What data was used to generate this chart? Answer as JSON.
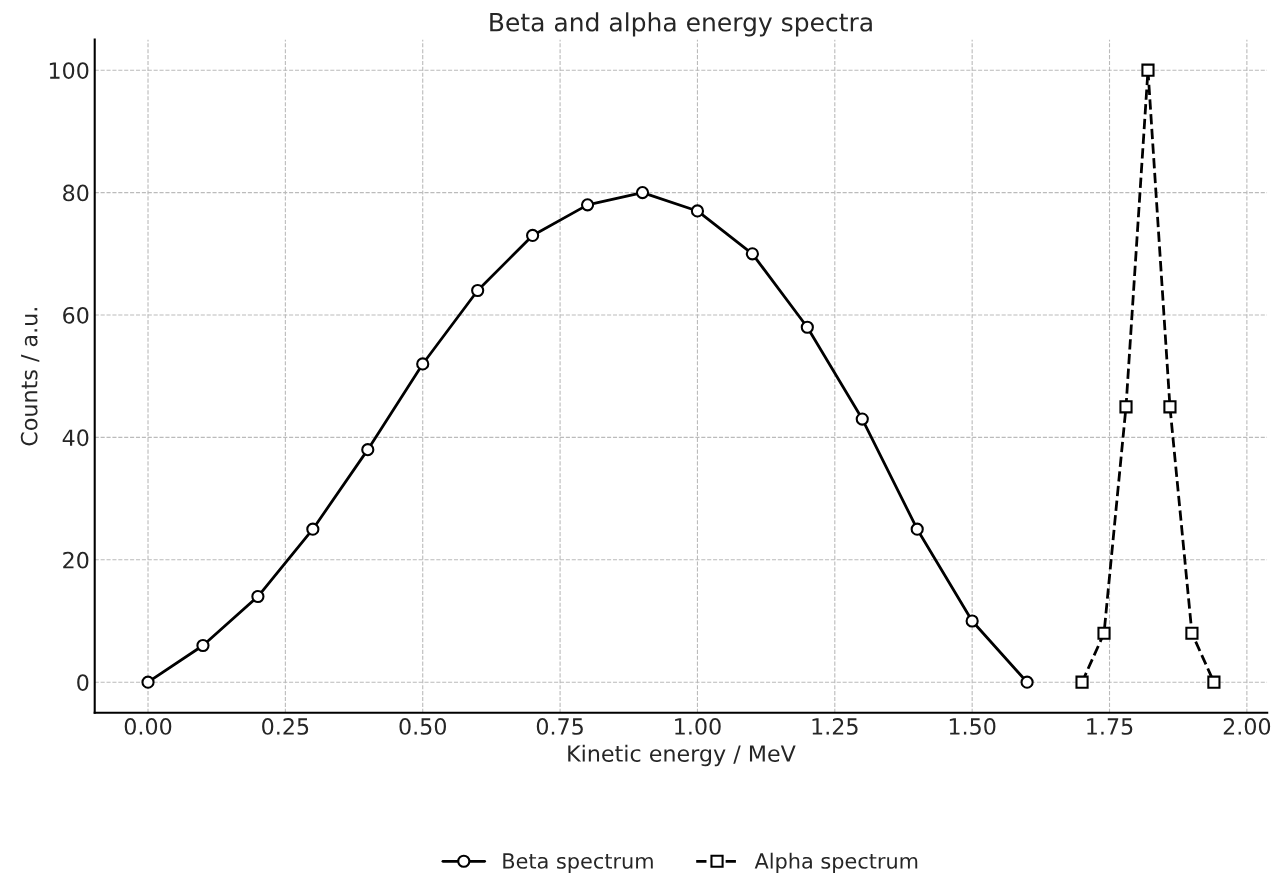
{
  "chart_data": {
    "type": "line",
    "title": "Beta and alpha energy spectra",
    "xlabel": "Kinetic energy / MeV",
    "ylabel": "Counts / a.u.",
    "xlim": [
      -0.097,
      2.037
    ],
    "ylim": [
      -5,
      105
    ],
    "xticks": [
      {
        "value": 0,
        "label": "0.00"
      },
      {
        "value": 0.25,
        "label": "0.25"
      },
      {
        "value": 0.5,
        "label": "0.50"
      },
      {
        "value": 0.75,
        "label": "0.75"
      },
      {
        "value": 1,
        "label": "1.00"
      },
      {
        "value": 1.25,
        "label": "1.25"
      },
      {
        "value": 1.5,
        "label": "1.50"
      },
      {
        "value": 1.75,
        "label": "1.75"
      },
      {
        "value": 2,
        "label": "2.00"
      }
    ],
    "yticks": [
      0,
      20,
      40,
      60,
      80,
      100
    ],
    "grid": true,
    "legend": "bottom",
    "series": [
      {
        "name": "Beta spectrum",
        "color": "#000000",
        "marker": "circle",
        "line_style": "solid",
        "x": [
          0,
          0.1,
          0.2,
          0.3,
          0.4,
          0.5,
          0.6,
          0.7,
          0.8,
          0.9,
          1.0,
          1.1,
          1.2,
          1.3,
          1.4,
          1.5,
          1.6
        ],
        "values": [
          0,
          6,
          14,
          25,
          38,
          52,
          64,
          73,
          78,
          80,
          77,
          70,
          58,
          43,
          25,
          10,
          0
        ]
      },
      {
        "name": "Alpha spectrum",
        "color": "#000000",
        "marker": "square",
        "line_style": "dashed",
        "x": [
          1.7,
          1.74,
          1.78,
          1.82,
          1.86,
          1.9,
          1.94
        ],
        "values": [
          0,
          8,
          45,
          100,
          45,
          8,
          0
        ]
      }
    ]
  }
}
